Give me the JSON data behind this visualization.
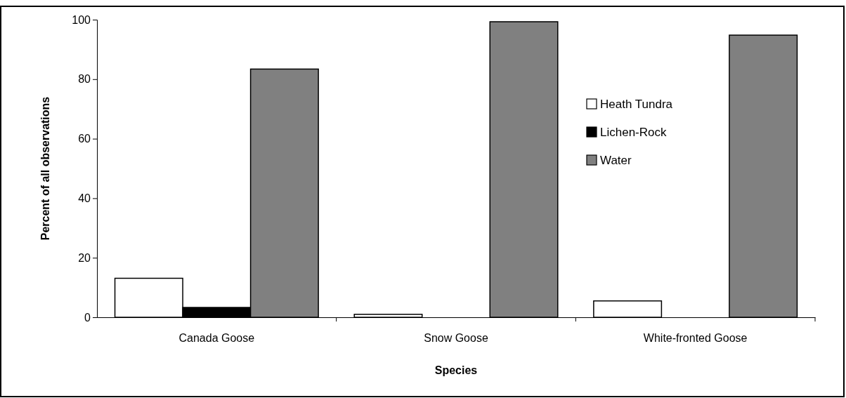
{
  "chart_data": {
    "type": "bar",
    "xlabel": "Species",
    "ylabel": "Percent of all observations",
    "categories": [
      "Canada Goose",
      "Snow  Goose",
      "White-fronted Goose"
    ],
    "series": [
      {
        "name": "Heath Tundra",
        "color": "#ffffff",
        "values": [
          13.1,
          1,
          5.5
        ]
      },
      {
        "name": "Lichen-Rock",
        "color": "#000000",
        "values": [
          3.3,
          0,
          0
        ]
      },
      {
        "name": "Water",
        "color": "#808080",
        "values": [
          83.4,
          99.3,
          94.8
        ]
      }
    ],
    "ylim": [
      0,
      100
    ],
    "yticks": [
      0,
      20,
      40,
      60,
      80,
      100
    ],
    "grid": false,
    "legend": "top right"
  }
}
